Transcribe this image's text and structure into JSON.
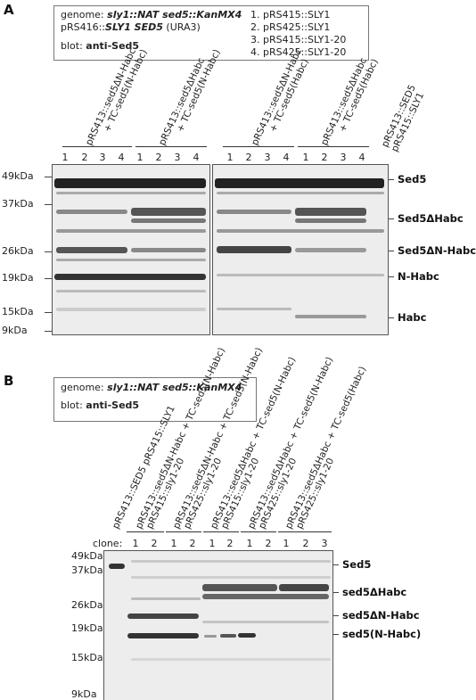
{
  "panel_a": {
    "letter": "A",
    "info": {
      "genome_label": "genome:",
      "genome_value": "sly1::NAT sed5::KanMX4",
      "plasmid_prefix": "pRS416::",
      "plasmid_value": "SLY1 SED5",
      "plasmid_marker": "(URA3)",
      "blot_label": "blot:",
      "blot_value": "anti-Sed5",
      "legend": [
        "1. pRS415::SLY1",
        "2. pRS425::SLY1",
        "3. pRS415::SLY1-20",
        "4. pRS425::SLY1-20"
      ]
    },
    "groups": [
      {
        "line1": "pRS413::sed5ΔN-Habc",
        "line2": "+ TC-sed5(N-Habc)"
      },
      {
        "line1": "pRS413::sed5ΔHabc",
        "line2": "+ TC-sed5(N-Habc)"
      },
      {
        "line1": "pRS413::sed5ΔN-Habc",
        "line2": "+ TC-sed5(Habc)"
      },
      {
        "line1": "pRS413::sed5ΔHabc",
        "line2": "+ TC-sed5(Habc)"
      }
    ],
    "control": {
      "line1": "pRS413::SED5",
      "line2": "pRS415::SLY1"
    },
    "lane_numbers": [
      "1",
      "2",
      "3",
      "4"
    ],
    "markers": [
      "49kDa",
      "37kDa",
      "26kDa",
      "19kDa",
      "15kDa",
      "9kDa"
    ],
    "bands": [
      "Sed5",
      "Sed5ΔHabc",
      "Sed5ΔN-Habc",
      "N-Habc",
      "Habc"
    ]
  },
  "panel_b": {
    "letter": "B",
    "info": {
      "genome_label": "genome:",
      "genome_value": "sly1::NAT sed5::KanMX4",
      "blot_label": "blot:",
      "blot_value": "anti-Sed5"
    },
    "lanes": [
      "pRS413::SED5  pRS415::SLY1",
      "pRS413::sed5ΔN-Habc + TC-sed5(N-Habc)",
      "pRS415::sly1-20",
      "pRS413::sed5ΔN-Habc + TC-sed5(N-Habc)",
      "pRS425::sly1-20",
      "pRS413::sed5ΔHabc + TC-sed5(N-Habc)",
      "pRS415::sly1-20",
      "pRS413::sed5ΔHabc + TC-sed5(N-Habc)",
      "pRS425::sly1-20",
      "pRS413::sed5ΔHabc + TC-sed5(Habc)",
      "pRS425::sly1-20"
    ],
    "clone_label": "clone:",
    "clone_numbers": [
      "1",
      "2",
      "1",
      "2",
      "1",
      "2",
      "1",
      "2",
      "1",
      "2",
      "3"
    ],
    "markers": [
      "49kDa",
      "37kDa",
      "26kDa",
      "19kDa",
      "15kDa",
      "9kDa"
    ],
    "bands": [
      "Sed5",
      "sed5ΔHabc",
      "sed5ΔN-Habc",
      "sed5(N-Habc)"
    ]
  }
}
